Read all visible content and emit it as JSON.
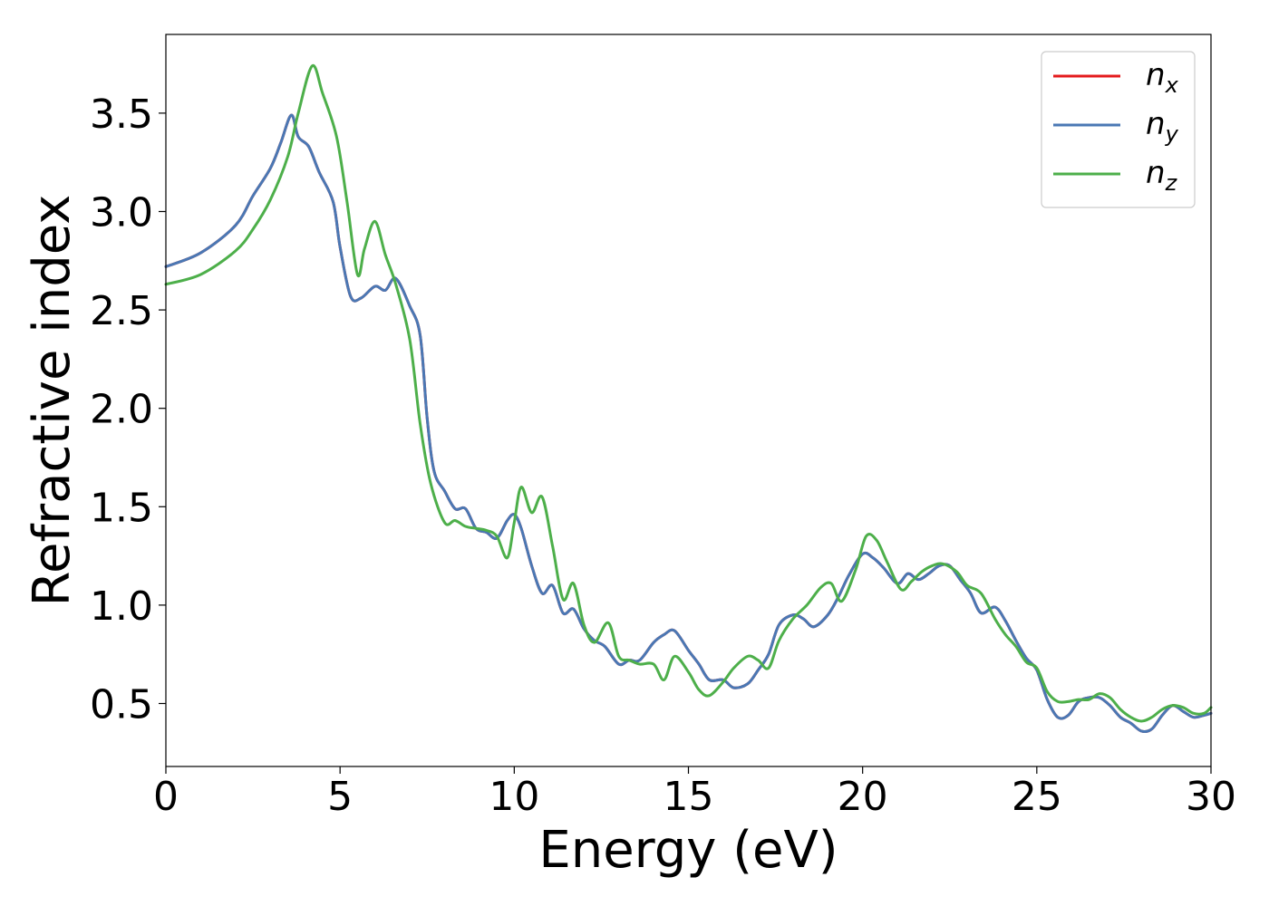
{
  "chart_data": {
    "type": "line",
    "title": "",
    "xlabel": "Energy (eV)",
    "ylabel": "Refractive index",
    "xlim": [
      0,
      30
    ],
    "ylim": [
      0.18,
      3.9
    ],
    "xticks": [
      0,
      5,
      10,
      15,
      20,
      25,
      30
    ],
    "xtick_labels": [
      "0",
      "5",
      "10",
      "15",
      "20",
      "25",
      "30"
    ],
    "yticks": [
      0.5,
      1.0,
      1.5,
      2.0,
      2.5,
      3.0,
      3.5
    ],
    "ytick_labels": [
      "0.5",
      "1.0",
      "1.5",
      "2.0",
      "2.5",
      "3.0",
      "3.5"
    ],
    "grid": false,
    "legend_position": "top-right",
    "series": [
      {
        "name": "n_x",
        "legend_base": "n",
        "legend_sub": "x",
        "color": "#e41a1c",
        "x": [
          0,
          1,
          2,
          2.5,
          3,
          3.3,
          3.6,
          3.8,
          4.1,
          4.4,
          4.8,
          5.0,
          5.3,
          5.6,
          6.0,
          6.3,
          6.6,
          7.0,
          7.3,
          7.5,
          7.7,
          8.0,
          8.3,
          8.6,
          8.9,
          9.2,
          9.5,
          9.8,
          10.0,
          10.2,
          10.5,
          10.8,
          11.1,
          11.4,
          11.7,
          12.0,
          12.3,
          12.6,
          13.0,
          13.3,
          13.6,
          14.0,
          14.3,
          14.6,
          15.0,
          15.3,
          15.6,
          16.0,
          16.3,
          16.7,
          17.0,
          17.3,
          17.6,
          18.0,
          18.3,
          18.6,
          19.0,
          19.3,
          19.6,
          20.0,
          20.3,
          20.6,
          21.0,
          21.3,
          21.6,
          21.9,
          22.2,
          22.5,
          22.8,
          23.1,
          23.4,
          23.8,
          24.1,
          24.4,
          24.7,
          25.0,
          25.3,
          25.6,
          25.9,
          26.2,
          26.5,
          26.8,
          27.1,
          27.4,
          27.7,
          28.0,
          28.3,
          28.6,
          28.9,
          29.2,
          29.5,
          29.8,
          30.0
        ],
        "y": [
          2.72,
          2.79,
          2.93,
          3.08,
          3.22,
          3.35,
          3.49,
          3.38,
          3.33,
          3.2,
          3.05,
          2.82,
          2.57,
          2.56,
          2.62,
          2.6,
          2.66,
          2.52,
          2.37,
          1.95,
          1.68,
          1.58,
          1.49,
          1.49,
          1.39,
          1.37,
          1.34,
          1.43,
          1.46,
          1.39,
          1.2,
          1.06,
          1.1,
          0.96,
          0.98,
          0.88,
          0.82,
          0.79,
          0.7,
          0.72,
          0.72,
          0.81,
          0.85,
          0.87,
          0.77,
          0.7,
          0.62,
          0.62,
          0.58,
          0.6,
          0.67,
          0.75,
          0.9,
          0.95,
          0.93,
          0.89,
          0.95,
          1.04,
          1.15,
          1.26,
          1.24,
          1.19,
          1.11,
          1.16,
          1.13,
          1.16,
          1.2,
          1.2,
          1.13,
          1.06,
          0.96,
          0.99,
          0.92,
          0.82,
          0.73,
          0.67,
          0.52,
          0.43,
          0.44,
          0.51,
          0.53,
          0.53,
          0.49,
          0.43,
          0.4,
          0.36,
          0.37,
          0.44,
          0.49,
          0.46,
          0.43,
          0.44,
          0.45
        ]
      },
      {
        "name": "n_y",
        "legend_base": "n",
        "legend_sub": "y",
        "color": "#4a78b4",
        "x": [
          0,
          1,
          2,
          2.5,
          3,
          3.3,
          3.6,
          3.8,
          4.1,
          4.4,
          4.8,
          5.0,
          5.3,
          5.6,
          6.0,
          6.3,
          6.6,
          7.0,
          7.3,
          7.5,
          7.7,
          8.0,
          8.3,
          8.6,
          8.9,
          9.2,
          9.5,
          9.8,
          10.0,
          10.2,
          10.5,
          10.8,
          11.1,
          11.4,
          11.7,
          12.0,
          12.3,
          12.6,
          13.0,
          13.3,
          13.6,
          14.0,
          14.3,
          14.6,
          15.0,
          15.3,
          15.6,
          16.0,
          16.3,
          16.7,
          17.0,
          17.3,
          17.6,
          18.0,
          18.3,
          18.6,
          19.0,
          19.3,
          19.6,
          20.0,
          20.3,
          20.6,
          21.0,
          21.3,
          21.6,
          21.9,
          22.2,
          22.5,
          22.8,
          23.1,
          23.4,
          23.8,
          24.1,
          24.4,
          24.7,
          25.0,
          25.3,
          25.6,
          25.9,
          26.2,
          26.5,
          26.8,
          27.1,
          27.4,
          27.7,
          28.0,
          28.3,
          28.6,
          28.9,
          29.2,
          29.5,
          29.8,
          30.0
        ],
        "y": [
          2.72,
          2.79,
          2.93,
          3.08,
          3.22,
          3.35,
          3.49,
          3.38,
          3.33,
          3.2,
          3.05,
          2.82,
          2.57,
          2.56,
          2.62,
          2.6,
          2.66,
          2.52,
          2.37,
          1.95,
          1.68,
          1.58,
          1.49,
          1.49,
          1.39,
          1.37,
          1.34,
          1.43,
          1.46,
          1.39,
          1.2,
          1.06,
          1.1,
          0.96,
          0.98,
          0.88,
          0.82,
          0.79,
          0.7,
          0.72,
          0.72,
          0.81,
          0.85,
          0.87,
          0.77,
          0.7,
          0.62,
          0.62,
          0.58,
          0.6,
          0.67,
          0.75,
          0.9,
          0.95,
          0.93,
          0.89,
          0.95,
          1.04,
          1.15,
          1.26,
          1.24,
          1.19,
          1.11,
          1.16,
          1.13,
          1.16,
          1.2,
          1.2,
          1.13,
          1.06,
          0.96,
          0.99,
          0.92,
          0.82,
          0.73,
          0.67,
          0.52,
          0.43,
          0.44,
          0.51,
          0.53,
          0.53,
          0.49,
          0.43,
          0.4,
          0.36,
          0.37,
          0.44,
          0.49,
          0.46,
          0.43,
          0.44,
          0.45
        ]
      },
      {
        "name": "n_z",
        "legend_base": "n",
        "legend_sub": "z",
        "color": "#4daf4a",
        "x": [
          0,
          1,
          2,
          2.5,
          3,
          3.5,
          3.8,
          4.2,
          4.5,
          4.9,
          5.2,
          5.5,
          5.7,
          6.0,
          6.3,
          6.6,
          7.0,
          7.3,
          7.6,
          8.0,
          8.3,
          8.6,
          8.9,
          9.2,
          9.5,
          9.8,
          10.0,
          10.2,
          10.5,
          10.8,
          11.1,
          11.4,
          11.7,
          12.0,
          12.3,
          12.7,
          13.0,
          13.3,
          13.6,
          14.0,
          14.3,
          14.6,
          15.0,
          15.3,
          15.6,
          16.0,
          16.3,
          16.7,
          17.0,
          17.3,
          17.6,
          18.0,
          18.4,
          18.8,
          19.1,
          19.4,
          19.8,
          20.1,
          20.4,
          20.7,
          21.1,
          21.4,
          21.7,
          22.0,
          22.3,
          22.7,
          23.0,
          23.4,
          23.8,
          24.1,
          24.4,
          24.7,
          25.0,
          25.3,
          25.6,
          25.9,
          26.2,
          26.5,
          26.8,
          27.1,
          27.4,
          27.7,
          28.0,
          28.3,
          28.6,
          28.9,
          29.2,
          29.5,
          29.8,
          30.0
        ],
        "y": [
          2.63,
          2.68,
          2.8,
          2.91,
          3.06,
          3.28,
          3.5,
          3.74,
          3.6,
          3.38,
          3.05,
          2.68,
          2.81,
          2.95,
          2.78,
          2.63,
          2.35,
          1.92,
          1.62,
          1.42,
          1.43,
          1.4,
          1.39,
          1.38,
          1.35,
          1.24,
          1.42,
          1.6,
          1.47,
          1.55,
          1.3,
          1.03,
          1.11,
          0.9,
          0.81,
          0.91,
          0.74,
          0.72,
          0.7,
          0.7,
          0.62,
          0.74,
          0.66,
          0.57,
          0.54,
          0.61,
          0.68,
          0.74,
          0.72,
          0.68,
          0.82,
          0.93,
          1.0,
          1.09,
          1.11,
          1.02,
          1.18,
          1.35,
          1.33,
          1.22,
          1.08,
          1.12,
          1.17,
          1.2,
          1.21,
          1.17,
          1.1,
          1.06,
          0.93,
          0.85,
          0.79,
          0.71,
          0.68,
          0.56,
          0.51,
          0.51,
          0.52,
          0.52,
          0.55,
          0.53,
          0.47,
          0.43,
          0.41,
          0.43,
          0.47,
          0.49,
          0.48,
          0.45,
          0.45,
          0.48
        ]
      }
    ]
  }
}
